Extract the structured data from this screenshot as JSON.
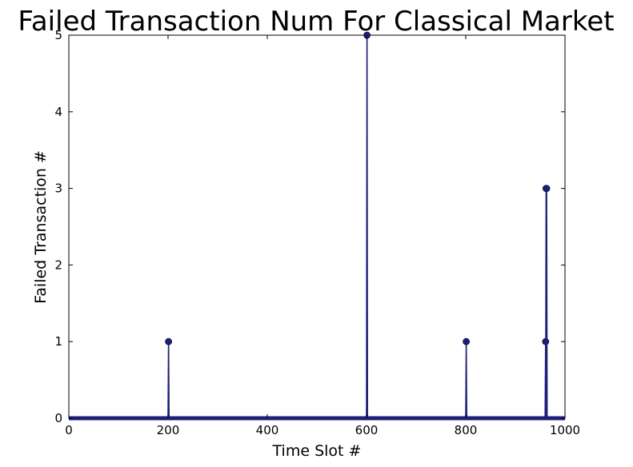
{
  "chart_data": {
    "type": "line",
    "title": "Failed Transaction Num For Classical Market",
    "xlabel": "Time Slot #",
    "ylabel": "Failed Transaction #",
    "xlim": [
      0,
      1000
    ],
    "ylim": [
      0,
      5
    ],
    "xticks": [
      "0",
      "200",
      "400",
      "600",
      "800",
      "1000"
    ],
    "yticks": [
      "0",
      "1",
      "2",
      "3",
      "4",
      "5"
    ],
    "grid": false,
    "series": [
      {
        "color": "#1f1f7a",
        "marker": "circle",
        "baseline": 0,
        "points": [
          {
            "x": 201,
            "y": 1
          },
          {
            "x": 601,
            "y": 5
          },
          {
            "x": 801,
            "y": 1
          },
          {
            "x": 961,
            "y": 1
          },
          {
            "x": 962,
            "y": 3
          },
          {
            "x": 963,
            "y": 3
          }
        ]
      }
    ]
  }
}
